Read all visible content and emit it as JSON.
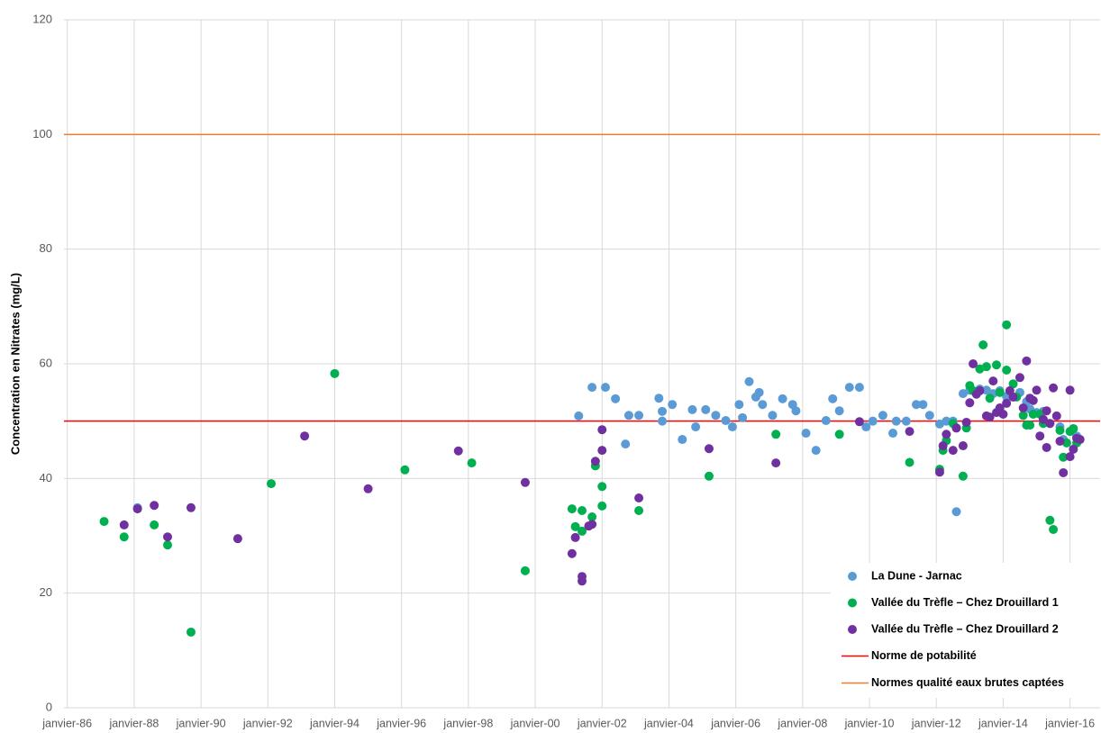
{
  "chart_data": {
    "type": "scatter",
    "y_label": "Concentration en Nitrates (mg/L)",
    "xlim": [
      1985.9,
      2016.9
    ],
    "xticks": [
      {
        "value": 1986,
        "label": "janvier-86"
      },
      {
        "value": 1988,
        "label": "janvier-88"
      },
      {
        "value": 1990,
        "label": "janvier-90"
      },
      {
        "value": 1992,
        "label": "janvier-92"
      },
      {
        "value": 1994,
        "label": "janvier-94"
      },
      {
        "value": 1996,
        "label": "janvier-96"
      },
      {
        "value": 1998,
        "label": "janvier-98"
      },
      {
        "value": 2000,
        "label": "janvier-00"
      },
      {
        "value": 2002,
        "label": "janvier-02"
      },
      {
        "value": 2004,
        "label": "janvier-04"
      },
      {
        "value": 2006,
        "label": "janvier-06"
      },
      {
        "value": 2008,
        "label": "janvier-08"
      },
      {
        "value": 2010,
        "label": "janvier-10"
      },
      {
        "value": 2012,
        "label": "janvier-12"
      },
      {
        "value": 2014,
        "label": "janvier-14"
      },
      {
        "value": 2016,
        "label": "janvier-16"
      }
    ],
    "ylim": [
      0,
      120
    ],
    "yticks": [
      0,
      20,
      40,
      60,
      80,
      100,
      120
    ],
    "grid": true,
    "legend": "lower right",
    "series": [
      {
        "name": "La Dune - Jarnac",
        "color": "#5b9bd5",
        "x": [
          1988.1,
          2001.3,
          2001.7,
          2002.1,
          2002.4,
          2002.7,
          2002.8,
          2003.1,
          2003.7,
          2003.8,
          2003.8,
          2004.1,
          2004.4,
          2004.7,
          2004.8,
          2005.1,
          2005.4,
          2005.7,
          2005.9,
          2006.1,
          2006.2,
          2006.4,
          2006.7,
          2006.6,
          2006.8,
          2007.1,
          2007.4,
          2007.7,
          2007.8,
          2008.1,
          2008.4,
          2008.7,
          2008.9,
          2009.1,
          2009.4,
          2009.7,
          2009.9,
          2010.1,
          2010.4,
          2010.7,
          2010.8,
          2011.1,
          2011.4,
          2011.6,
          2011.8,
          2012.1,
          2012.3,
          2012.5,
          2012.6,
          2012.8,
          2013.0,
          2013.2,
          2013.3,
          2013.5,
          2013.7,
          2013.9,
          2014.1,
          2014.3,
          2014.5,
          2014.7,
          2014.8,
          2015.0,
          2015.2,
          2015.4,
          2015.7,
          2015.8,
          2016.0,
          2016.2
        ],
        "values": [
          34.9,
          50.9,
          55.9,
          55.9,
          53.9,
          46.0,
          51.0,
          51.0,
          54.0,
          51.7,
          50.0,
          52.9,
          46.8,
          52.0,
          49.0,
          52.0,
          51.0,
          50.1,
          49.0,
          52.9,
          50.6,
          56.9,
          55.0,
          54.2,
          52.9,
          51.0,
          53.9,
          52.9,
          51.8,
          47.9,
          44.9,
          50.1,
          53.9,
          51.8,
          55.9,
          55.9,
          49.0,
          50.0,
          51.0,
          47.9,
          50.0,
          50.0,
          52.9,
          52.9,
          51.0,
          49.5,
          50.0,
          50.0,
          34.2,
          54.8,
          55.4,
          55.0,
          55.6,
          55.4,
          54.8,
          55.3,
          54.3,
          54.2,
          55.0,
          53.4,
          52.1,
          51.5,
          51.7,
          49.6,
          49.0,
          46.8,
          48.2,
          47.4
        ]
      },
      {
        "name": "Vallée du Trèfle – Chez Drouillard 1",
        "color": "#00b050",
        "x": [
          1987.1,
          1987.7,
          1988.6,
          1989.0,
          1989.7,
          1992.1,
          1994.0,
          1996.1,
          1998.1,
          1999.7,
          2001.1,
          2001.2,
          2001.4,
          2001.4,
          2001.7,
          2001.8,
          2002.0,
          2002.0,
          2003.1,
          2005.2,
          2007.2,
          2009.1,
          2011.2,
          2012.1,
          2012.2,
          2012.3,
          2012.5,
          2012.6,
          2012.8,
          2012.9,
          2013.0,
          2013.1,
          2013.3,
          2013.4,
          2013.5,
          2013.6,
          2013.8,
          2013.9,
          2014.1,
          2014.1,
          2014.3,
          2014.4,
          2014.6,
          2014.7,
          2014.8,
          2014.9,
          2015.1,
          2015.2,
          2015.4,
          2015.5,
          2015.7,
          2015.8,
          2015.9,
          2016.0,
          2016.1,
          2016.2
        ],
        "values": [
          32.5,
          29.8,
          31.9,
          28.4,
          13.2,
          39.1,
          58.3,
          41.5,
          42.7,
          23.9,
          34.7,
          31.6,
          34.4,
          30.8,
          33.3,
          42.2,
          35.2,
          38.6,
          34.4,
          40.4,
          47.7,
          47.7,
          42.8,
          41.6,
          44.9,
          46.6,
          49.6,
          48.8,
          40.4,
          48.8,
          56.2,
          55.3,
          59.1,
          63.3,
          59.5,
          54.0,
          59.8,
          55.0,
          66.8,
          58.9,
          56.5,
          54.2,
          51.0,
          49.3,
          49.3,
          51.2,
          51.2,
          49.6,
          32.7,
          31.1,
          48.4,
          43.7,
          46.2,
          48.2,
          48.7,
          46.2
        ]
      },
      {
        "name": "Vallée du Trèfle – Chez Drouillard 2",
        "color": "#7030a0",
        "x": [
          1987.7,
          1988.1,
          1988.6,
          1989.0,
          1989.7,
          1991.1,
          1993.1,
          1995.0,
          1997.7,
          1999.7,
          2001.1,
          2001.2,
          2001.4,
          2001.4,
          2001.6,
          2001.7,
          2001.8,
          2002.0,
          2002.0,
          2003.1,
          2005.2,
          2007.2,
          2009.7,
          2011.2,
          2012.1,
          2012.2,
          2012.3,
          2012.5,
          2012.6,
          2012.8,
          2012.9,
          2013.0,
          2013.1,
          2013.2,
          2013.3,
          2013.5,
          2013.6,
          2013.7,
          2013.8,
          2013.9,
          2014.0,
          2014.1,
          2014.2,
          2014.3,
          2014.5,
          2014.6,
          2014.7,
          2014.8,
          2014.9,
          2015.0,
          2015.1,
          2015.2,
          2015.3,
          2015.3,
          2015.4,
          2015.5,
          2015.6,
          2015.7,
          2015.8,
          2016.0,
          2016.0,
          2016.1,
          2016.2,
          2016.3
        ],
        "values": [
          31.9,
          34.7,
          35.3,
          29.8,
          34.9,
          29.5,
          47.4,
          38.2,
          44.8,
          39.3,
          26.9,
          29.7,
          22.9,
          22.1,
          31.7,
          32.0,
          43.0,
          44.9,
          48.5,
          36.6,
          45.2,
          42.7,
          49.9,
          48.2,
          41.1,
          45.7,
          47.7,
          44.9,
          48.8,
          45.7,
          49.8,
          53.2,
          60.0,
          54.7,
          55.3,
          50.9,
          50.7,
          57.0,
          51.5,
          52.3,
          51.2,
          53.1,
          55.3,
          54.2,
          57.6,
          52.3,
          60.5,
          54.0,
          53.6,
          55.4,
          47.4,
          50.3,
          51.8,
          45.4,
          49.6,
          55.8,
          50.9,
          46.5,
          41.0,
          55.4,
          43.8,
          45.1,
          47.0,
          46.8
        ]
      }
    ],
    "reference_lines": [
      {
        "name": "Norme de potabilité",
        "color": "#ff0000",
        "value": 50
      },
      {
        "name": "Normes qualité eaux brutes captées",
        "color": "#ed7d31",
        "value": 100
      }
    ]
  }
}
